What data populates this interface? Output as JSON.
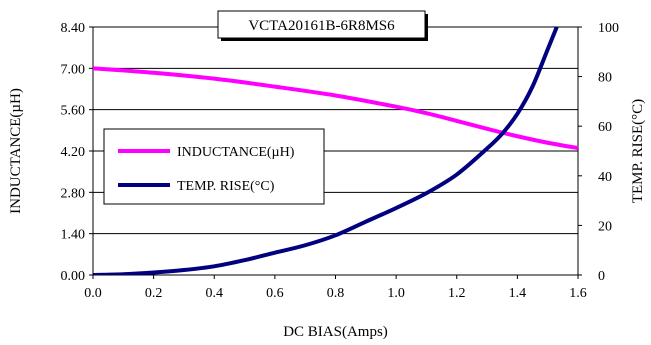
{
  "chart_data": {
    "type": "line",
    "title": "VCTA20161B-6R8MS6",
    "xlabel": "DC BIAS(Amps)",
    "ylabel_left": "INDUCTANCE(µH)",
    "ylabel_right": "TEMP. RISE(°C)",
    "xlim": [
      0,
      1.6
    ],
    "ylim_left": [
      0,
      8.4
    ],
    "ylim_right": [
      0,
      100
    ],
    "x_ticks": [
      "0.0",
      "0.2",
      "0.4",
      "0.6",
      "0.8",
      "1.0",
      "1.2",
      "1.4",
      "1.6"
    ],
    "y_left_ticks": [
      "0.00",
      "1.40",
      "2.80",
      "4.20",
      "5.60",
      "7.00",
      "8.40"
    ],
    "y_right_ticks": [
      "0",
      "20",
      "40",
      "60",
      "80",
      "100"
    ],
    "grid": "horizontal",
    "legend_position": "middle-left",
    "series": [
      {
        "name": "INDUCTANCE(µH)",
        "axis": "left",
        "color": "#ff00ff",
        "x": [
          0.0,
          0.2,
          0.4,
          0.6,
          0.8,
          1.0,
          1.1,
          1.2,
          1.3,
          1.4,
          1.5,
          1.6
        ],
        "y": [
          7.0,
          6.85,
          6.65,
          6.38,
          6.08,
          5.7,
          5.48,
          5.22,
          4.95,
          4.7,
          4.48,
          4.3
        ]
      },
      {
        "name": "TEMP. RISE(°C)",
        "axis": "right",
        "color": "#000080",
        "x": [
          0.0,
          0.1,
          0.2,
          0.3,
          0.4,
          0.5,
          0.6,
          0.7,
          0.8,
          0.9,
          1.0,
          1.1,
          1.2,
          1.3,
          1.35,
          1.4,
          1.45,
          1.5,
          1.53
        ],
        "y": [
          0,
          0.3,
          1,
          2,
          3.5,
          6,
          9,
          12,
          16,
          21.5,
          27,
          33,
          40.5,
          51,
          57,
          65,
          76,
          91,
          100
        ]
      }
    ]
  }
}
